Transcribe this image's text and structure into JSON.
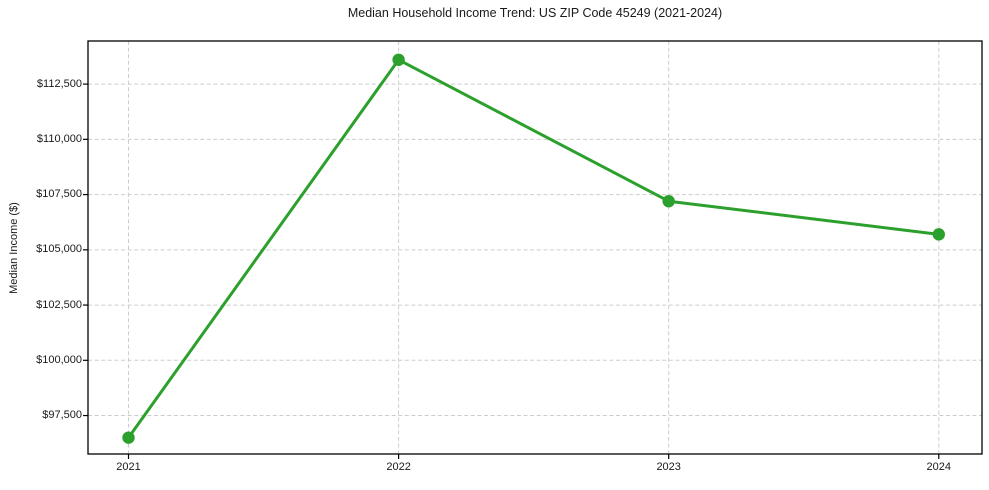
{
  "chart_data": {
    "type": "line",
    "title": "Median Household Income Trend: US ZIP Code 45249 (2021-2024)",
    "xlabel": "",
    "ylabel": "Median Income ($)",
    "x": [
      2021,
      2022,
      2023,
      2024
    ],
    "xtick_labels": [
      "2021",
      "2022",
      "2023",
      "2024"
    ],
    "series": [
      {
        "name": "Median household income",
        "values": [
          96500,
          113600,
          107200,
          105700
        ]
      }
    ],
    "yticks": [
      97500,
      100000,
      102500,
      105000,
      107500,
      110000,
      112500
    ],
    "ytick_labels": [
      "$97,500",
      "$100,000",
      "$102,500",
      "$105,000",
      "$107,500",
      "$110,000",
      "$112,500"
    ],
    "xlim": [
      2020.85,
      2024.16
    ],
    "ylim": [
      95760,
      114450
    ],
    "grid": "dashed-both-axes",
    "legend": "none",
    "marker": "circle"
  },
  "colors": {
    "line": "#2ca02c",
    "marker": "#2ca02c",
    "grid": "#cdcdcd",
    "axis": "#000000",
    "text": "#1a1a1a",
    "background": "#ffffff"
  }
}
